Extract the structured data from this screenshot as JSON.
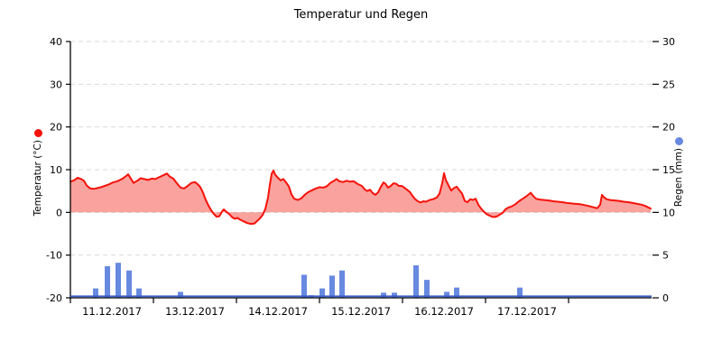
{
  "title": "Temperatur und Regen",
  "colors": {
    "temp_line": "#f5120b",
    "temp_fill": "rgba(246,70,60,0.5)",
    "temp_marker": "#f5120b",
    "rain_bar": "#6789e0",
    "rain_marker": "#6789e0",
    "rain_baseline": "#3c5fca",
    "grid": "#d9d9d9",
    "axis": "#000000",
    "text": "#000000"
  },
  "chart_data": {
    "type": "mixed",
    "title": "Temperatur und Regen",
    "grid": true,
    "x_axis": {
      "range_days": [
        0,
        7
      ],
      "tick_positions": [
        0,
        1,
        2,
        3,
        4,
        5,
        6
      ],
      "label_positions": [
        0.5,
        1.5,
        2.5,
        3.5,
        4.5,
        5.5
      ],
      "labels": [
        "11.12.2017",
        "13.12.2017",
        "14.12.2017",
        "15.12.2017",
        "16.12.2017",
        "17.12.2017"
      ]
    },
    "y_left": {
      "label": "Temperatur (°C)",
      "ticks": [
        40,
        30,
        20,
        10,
        0,
        -10,
        -20
      ],
      "range": [
        -20,
        40
      ]
    },
    "y_right": {
      "label": "Regen (mm)",
      "ticks": [
        30,
        25,
        20,
        15,
        10,
        5,
        0
      ],
      "range": [
        0,
        30
      ]
    },
    "series": [
      {
        "name": "Temperatur",
        "type": "area",
        "unit": "°C",
        "axis": "left",
        "points": [
          [
            0.0,
            7.2
          ],
          [
            0.043,
            7.5
          ],
          [
            0.087,
            8.1
          ],
          [
            0.13,
            7.8
          ],
          [
            0.163,
            7.4
          ],
          [
            0.196,
            6.3
          ],
          [
            0.239,
            5.6
          ],
          [
            0.283,
            5.5
          ],
          [
            0.326,
            5.7
          ],
          [
            0.37,
            5.9
          ],
          [
            0.413,
            6.2
          ],
          [
            0.457,
            6.5
          ],
          [
            0.511,
            7.0
          ],
          [
            0.565,
            7.3
          ],
          [
            0.62,
            7.8
          ],
          [
            0.663,
            8.4
          ],
          [
            0.696,
            8.9
          ],
          [
            0.728,
            7.9
          ],
          [
            0.761,
            6.9
          ],
          [
            0.804,
            7.4
          ],
          [
            0.848,
            8.0
          ],
          [
            0.891,
            7.8
          ],
          [
            0.935,
            7.6
          ],
          [
            0.978,
            7.9
          ],
          [
            1.022,
            7.8
          ],
          [
            1.065,
            8.2
          ],
          [
            1.12,
            8.7
          ],
          [
            1.163,
            9.1
          ],
          [
            1.196,
            8.4
          ],
          [
            1.239,
            7.9
          ],
          [
            1.283,
            6.8
          ],
          [
            1.326,
            5.8
          ],
          [
            1.37,
            5.6
          ],
          [
            1.413,
            6.2
          ],
          [
            1.457,
            6.9
          ],
          [
            1.5,
            7.1
          ],
          [
            1.533,
            6.6
          ],
          [
            1.565,
            5.9
          ],
          [
            1.598,
            4.6
          ],
          [
            1.63,
            2.9
          ],
          [
            1.663,
            1.6
          ],
          [
            1.696,
            0.5
          ],
          [
            1.728,
            -0.4
          ],
          [
            1.761,
            -1.0
          ],
          [
            1.793,
            -0.9
          ],
          [
            1.826,
            0.2
          ],
          [
            1.848,
            0.7
          ],
          [
            1.88,
            0.1
          ],
          [
            1.913,
            -0.4
          ],
          [
            1.946,
            -1.1
          ],
          [
            1.978,
            -1.5
          ],
          [
            2.011,
            -1.3
          ],
          [
            2.043,
            -1.7
          ],
          [
            2.087,
            -2.1
          ],
          [
            2.13,
            -2.5
          ],
          [
            2.174,
            -2.7
          ],
          [
            2.217,
            -2.6
          ],
          [
            2.25,
            -2.0
          ],
          [
            2.283,
            -1.4
          ],
          [
            2.315,
            -0.6
          ],
          [
            2.348,
            0.8
          ],
          [
            2.38,
            3.5
          ],
          [
            2.402,
            6.5
          ],
          [
            2.424,
            9.0
          ],
          [
            2.446,
            9.8
          ],
          [
            2.467,
            8.8
          ],
          [
            2.5,
            8.1
          ],
          [
            2.533,
            7.5
          ],
          [
            2.565,
            7.8
          ],
          [
            2.598,
            7.0
          ],
          [
            2.63,
            6.1
          ],
          [
            2.663,
            4.2
          ],
          [
            2.696,
            3.2
          ],
          [
            2.739,
            2.9
          ],
          [
            2.783,
            3.3
          ],
          [
            2.826,
            4.2
          ],
          [
            2.87,
            4.8
          ],
          [
            2.913,
            5.2
          ],
          [
            2.957,
            5.6
          ],
          [
            3.0,
            5.9
          ],
          [
            3.043,
            5.8
          ],
          [
            3.087,
            6.1
          ],
          [
            3.13,
            6.9
          ],
          [
            3.174,
            7.4
          ],
          [
            3.207,
            7.8
          ],
          [
            3.239,
            7.3
          ],
          [
            3.283,
            7.1
          ],
          [
            3.326,
            7.4
          ],
          [
            3.37,
            7.2
          ],
          [
            3.413,
            7.3
          ],
          [
            3.446,
            6.8
          ],
          [
            3.478,
            6.5
          ],
          [
            3.511,
            6.2
          ],
          [
            3.543,
            5.4
          ],
          [
            3.576,
            5.0
          ],
          [
            3.609,
            5.3
          ],
          [
            3.641,
            4.5
          ],
          [
            3.674,
            4.1
          ],
          [
            3.707,
            4.7
          ],
          [
            3.739,
            6.0
          ],
          [
            3.772,
            7.0
          ],
          [
            3.793,
            6.7
          ],
          [
            3.826,
            5.8
          ],
          [
            3.859,
            6.2
          ],
          [
            3.891,
            6.8
          ],
          [
            3.924,
            6.7
          ],
          [
            3.957,
            6.2
          ],
          [
            3.989,
            6.2
          ],
          [
            4.022,
            5.8
          ],
          [
            4.054,
            5.3
          ],
          [
            4.087,
            4.8
          ],
          [
            4.12,
            3.9
          ],
          [
            4.152,
            3.1
          ],
          [
            4.185,
            2.6
          ],
          [
            4.217,
            2.3
          ],
          [
            4.25,
            2.6
          ],
          [
            4.283,
            2.5
          ],
          [
            4.326,
            2.9
          ],
          [
            4.37,
            3.1
          ],
          [
            4.413,
            3.5
          ],
          [
            4.446,
            4.4
          ],
          [
            4.478,
            6.8
          ],
          [
            4.5,
            9.2
          ],
          [
            4.522,
            7.6
          ],
          [
            4.554,
            6.3
          ],
          [
            4.587,
            5.1
          ],
          [
            4.62,
            5.7
          ],
          [
            4.652,
            6.0
          ],
          [
            4.685,
            5.2
          ],
          [
            4.717,
            4.4
          ],
          [
            4.75,
            2.7
          ],
          [
            4.783,
            2.4
          ],
          [
            4.815,
            3.1
          ],
          [
            4.848,
            2.9
          ],
          [
            4.88,
            3.2
          ],
          [
            4.913,
            1.8
          ],
          [
            4.946,
            0.9
          ],
          [
            4.978,
            0.2
          ],
          [
            5.011,
            -0.4
          ],
          [
            5.043,
            -0.7
          ],
          [
            5.076,
            -1.0
          ],
          [
            5.109,
            -1.1
          ],
          [
            5.141,
            -0.9
          ],
          [
            5.174,
            -0.5
          ],
          [
            5.207,
            -0.1
          ],
          [
            5.239,
            0.7
          ],
          [
            5.272,
            1.1
          ],
          [
            5.315,
            1.4
          ],
          [
            5.359,
            1.9
          ],
          [
            5.402,
            2.6
          ],
          [
            5.457,
            3.3
          ],
          [
            5.5,
            3.9
          ],
          [
            5.543,
            4.6
          ],
          [
            5.576,
            3.8
          ],
          [
            5.609,
            3.2
          ],
          [
            5.652,
            3.0
          ],
          [
            5.707,
            2.9
          ],
          [
            5.761,
            2.8
          ],
          [
            5.815,
            2.6
          ],
          [
            5.87,
            2.5
          ],
          [
            5.924,
            2.4
          ],
          [
            5.978,
            2.2
          ],
          [
            6.033,
            2.1
          ],
          [
            6.087,
            2.0
          ],
          [
            6.141,
            1.9
          ],
          [
            6.196,
            1.7
          ],
          [
            6.239,
            1.5
          ],
          [
            6.283,
            1.3
          ],
          [
            6.315,
            1.1
          ],
          [
            6.348,
            1.0
          ],
          [
            6.38,
            1.8
          ],
          [
            6.402,
            4.1
          ],
          [
            6.424,
            3.6
          ],
          [
            6.457,
            3.1
          ],
          [
            6.5,
            2.9
          ],
          [
            6.554,
            2.8
          ],
          [
            6.609,
            2.7
          ],
          [
            6.663,
            2.5
          ],
          [
            6.717,
            2.4
          ],
          [
            6.772,
            2.2
          ],
          [
            6.826,
            2.0
          ],
          [
            6.88,
            1.8
          ],
          [
            6.924,
            1.5
          ],
          [
            6.957,
            1.2
          ],
          [
            6.989,
            0.9
          ]
        ]
      },
      {
        "name": "Regen",
        "type": "bar",
        "unit": "mm",
        "axis": "right",
        "bar_width_days": 0.065,
        "points": [
          [
            0.304,
            1.1
          ],
          [
            0.446,
            3.7
          ],
          [
            0.576,
            4.1
          ],
          [
            0.707,
            3.2
          ],
          [
            0.826,
            1.1
          ],
          [
            1.326,
            0.7
          ],
          [
            2.815,
            2.7
          ],
          [
            2.902,
            0.3
          ],
          [
            3.033,
            1.1
          ],
          [
            3.152,
            2.6
          ],
          [
            3.272,
            3.2
          ],
          [
            3.772,
            0.6
          ],
          [
            3.902,
            0.6
          ],
          [
            4.163,
            3.8
          ],
          [
            4.293,
            2.1
          ],
          [
            4.533,
            0.7
          ],
          [
            4.652,
            1.2
          ],
          [
            5.413,
            1.2
          ]
        ],
        "baseline": true
      }
    ]
  }
}
